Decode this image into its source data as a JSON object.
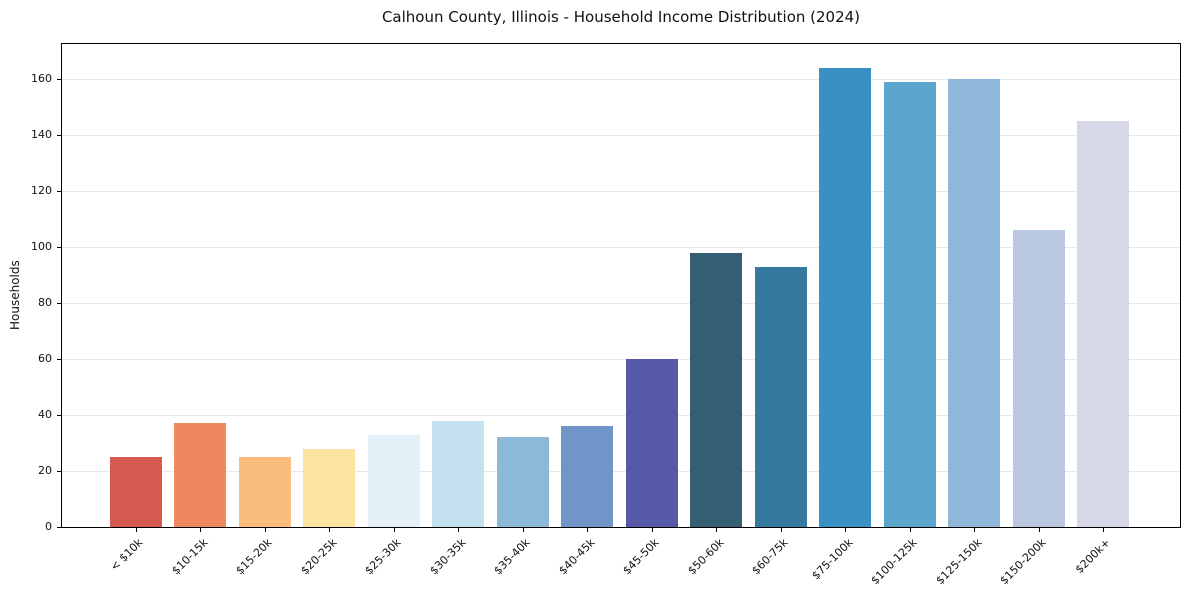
{
  "chart_data": {
    "type": "bar",
    "title": "Calhoun County, Illinois - Household Income Distribution (2024)",
    "xlabel": "",
    "ylabel": "Households",
    "categories": [
      "< $10k",
      "$10-15k",
      "$15-20k",
      "$20-25k",
      "$25-30k",
      "$30-35k",
      "$35-40k",
      "$40-45k",
      "$45-50k",
      "$50-60k",
      "$60-75k",
      "$75-100k",
      "$100-125k",
      "$125-150k",
      "$150-200k",
      "$200k+"
    ],
    "values": [
      25,
      37,
      25,
      28,
      33,
      38,
      32,
      36,
      60,
      98,
      93,
      164,
      159,
      160,
      106,
      145
    ],
    "bar_colors": [
      "#d65951",
      "#ef875f",
      "#fabd7e",
      "#fce3a0",
      "#e4f1f8",
      "#c3e1ef",
      "#8db9d9",
      "#7195c8",
      "#5659a6",
      "#356073",
      "#357a9e",
      "#3990c4",
      "#5aa6cc",
      "#8fb7d9",
      "#b9c7e0",
      "#d6d8e7"
    ],
    "yticks": [
      0,
      20,
      40,
      60,
      80,
      100,
      120,
      140,
      160
    ],
    "ylim": [
      0,
      172.5
    ],
    "grid": "horizontal",
    "gridline_color": "#e8e8e8",
    "axis_color": "#000000",
    "text_color": "#111111",
    "background_color": "#ffffff",
    "legend": "none"
  }
}
